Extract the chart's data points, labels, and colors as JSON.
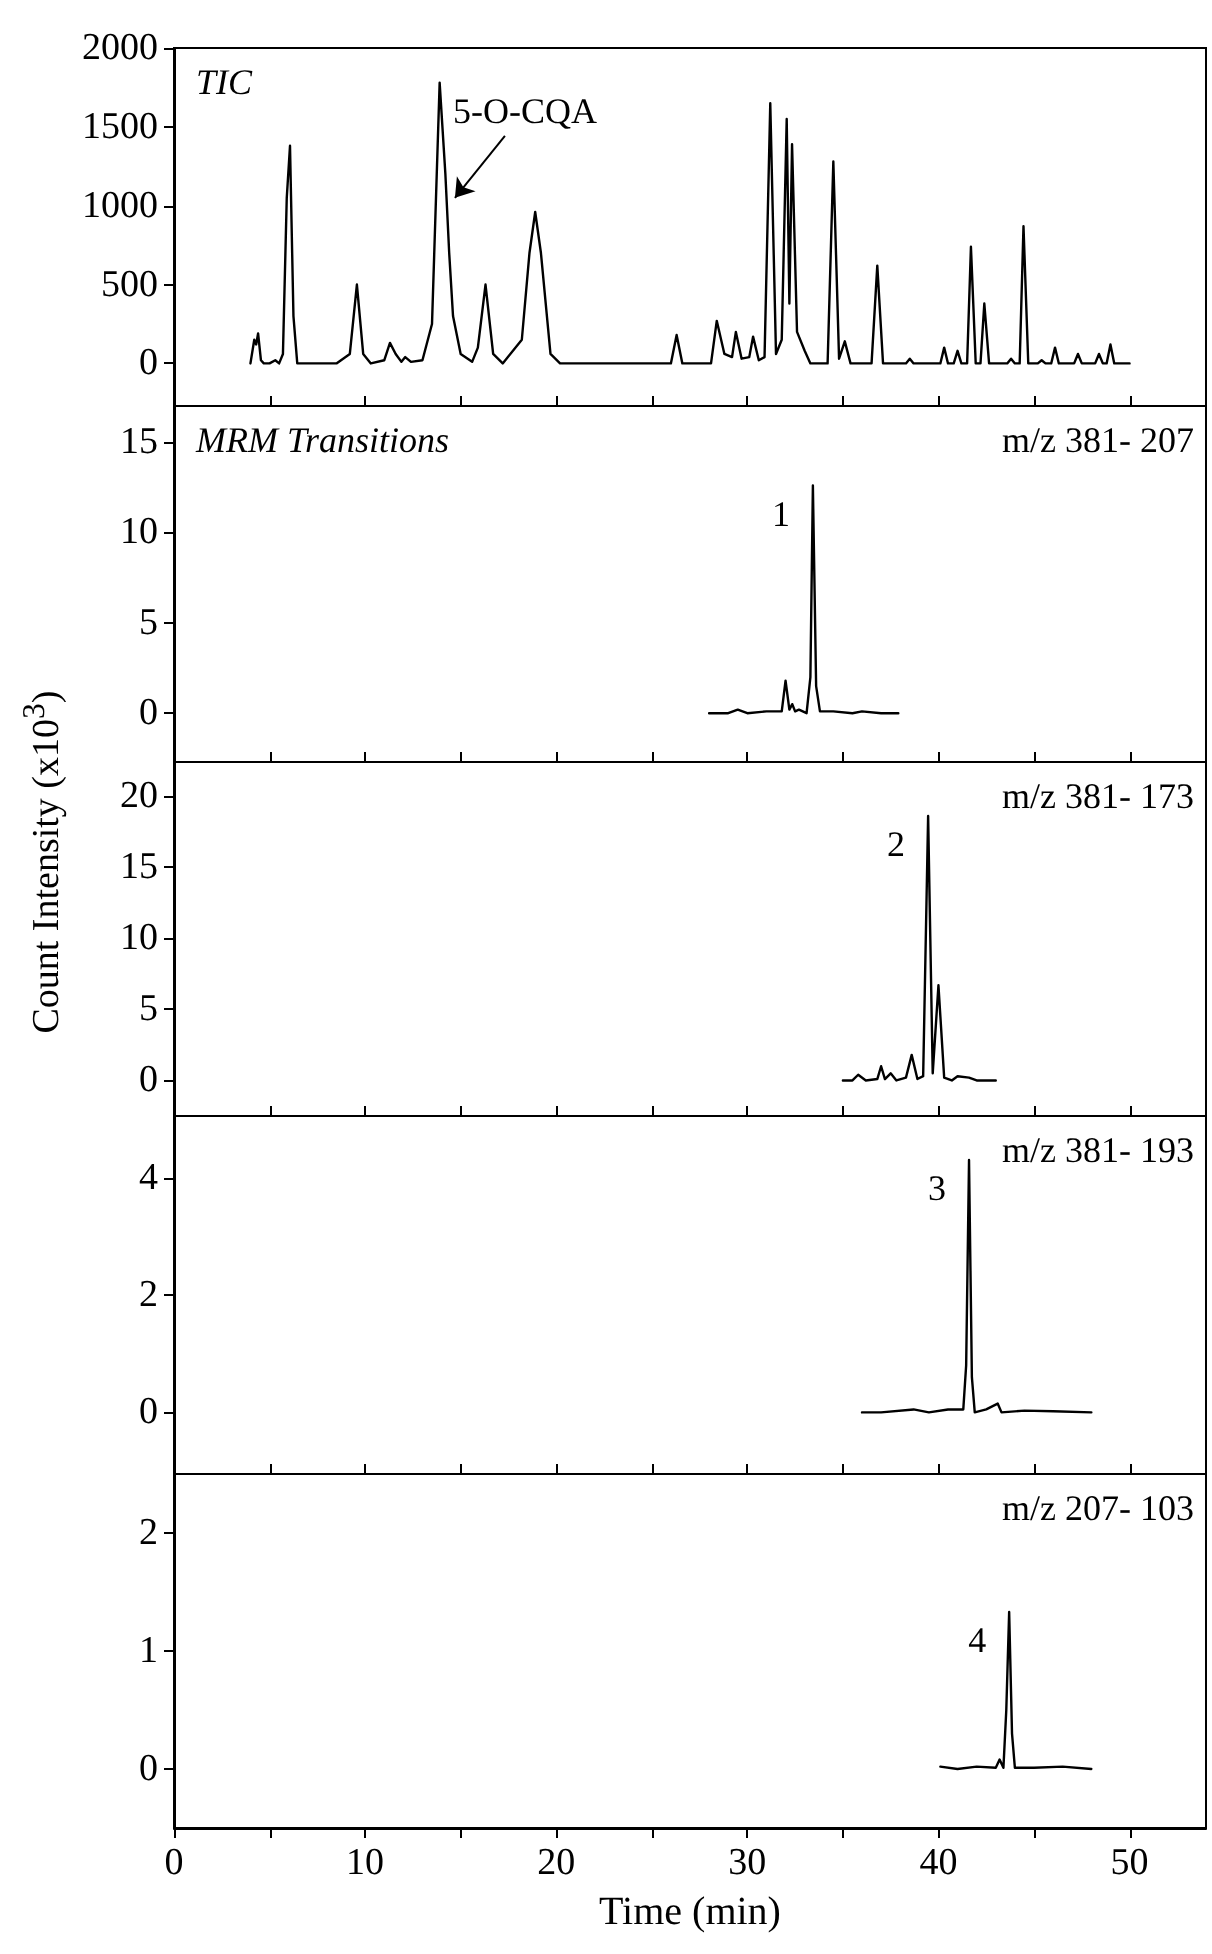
{
  "chart_data": [
    {
      "type": "line",
      "title": "TIC",
      "color": "#000000",
      "xlim": [
        0,
        54
      ],
      "ylim": [
        -270,
        2000
      ],
      "yticks": [
        0,
        500,
        1000,
        1500,
        2000
      ],
      "xticks": [
        0,
        {
          "value": 5,
          "label": null
        },
        10,
        {
          "value": 15,
          "label": null
        },
        20,
        {
          "value": 25,
          "label": null
        },
        30,
        {
          "value": 35,
          "label": null
        },
        40,
        {
          "value": 45,
          "label": null
        },
        50
      ],
      "tick_labels": "y",
      "annotations": [
        {
          "text": "5-O-CQA",
          "x": 14.7,
          "y": 1050
        }
      ],
      "x": [
        4.0,
        4.2,
        4.3,
        4.4,
        4.55,
        4.7,
        5.0,
        5.3,
        5.5,
        5.7,
        5.9,
        6.07,
        6.25,
        6.45,
        8.5,
        9.2,
        9.57,
        9.9,
        10.3,
        11.0,
        11.3,
        11.6,
        11.9,
        12.1,
        12.4,
        13.0,
        13.5,
        13.9,
        14.2,
        14.4,
        14.6,
        15.0,
        15.6,
        15.9,
        16.3,
        16.7,
        17.2,
        18.2,
        18.6,
        18.9,
        19.2,
        19.7,
        20.2,
        26.0,
        26.3,
        26.6,
        28.1,
        28.4,
        28.8,
        29.2,
        29.4,
        29.7,
        30.1,
        30.3,
        30.6,
        30.9,
        31.2,
        31.5,
        31.8,
        32.06,
        32.2,
        32.34,
        32.6,
        33.0,
        33.3,
        34.2,
        34.5,
        34.8,
        35.1,
        35.4,
        36.5,
        36.8,
        37.1,
        38.3,
        38.5,
        38.7,
        40.1,
        40.3,
        40.5,
        40.8,
        41.0,
        41.2,
        41.5,
        41.7,
        41.95,
        42.2,
        42.4,
        42.65,
        43.6,
        43.8,
        44.0,
        44.25,
        44.45,
        44.7,
        45.2,
        45.4,
        45.6,
        45.9,
        46.1,
        46.3,
        47.1,
        47.3,
        47.5,
        48.2,
        48.4,
        48.6,
        48.8,
        49.0,
        49.2,
        50.0
      ],
      "values": [
        0,
        150,
        120,
        190,
        20,
        0,
        0,
        20,
        0,
        60,
        1050,
        1380,
        300,
        0,
        0,
        60,
        500,
        60,
        0,
        20,
        130,
        60,
        10,
        40,
        10,
        20,
        250,
        1780,
        1200,
        700,
        300,
        60,
        10,
        100,
        500,
        60,
        0,
        150,
        700,
        960,
        700,
        60,
        0,
        0,
        180,
        0,
        0,
        270,
        60,
        40,
        200,
        30,
        40,
        170,
        20,
        40,
        1650,
        60,
        150,
        1550,
        380,
        1390,
        200,
        80,
        0,
        0,
        1280,
        30,
        140,
        0,
        0,
        620,
        0,
        0,
        30,
        0,
        0,
        100,
        0,
        0,
        80,
        0,
        0,
        740,
        0,
        0,
        380,
        0,
        0,
        30,
        0,
        0,
        870,
        0,
        0,
        20,
        0,
        0,
        100,
        0,
        0,
        60,
        0,
        0,
        60,
        0,
        0,
        120,
        0,
        0
      ]
    },
    {
      "type": "line",
      "title": "MRM Transitions",
      "subtitle": "m/z 381- 207",
      "color": "#000000",
      "xlim": [
        0,
        54
      ],
      "ylim": [
        -2.7,
        17
      ],
      "yticks": [
        0,
        5,
        10,
        15
      ],
      "xticks": [
        0,
        {
          "value": 5,
          "label": null
        },
        10,
        {
          "value": 15,
          "label": null
        },
        20,
        {
          "value": 25,
          "label": null
        },
        30,
        {
          "value": 35,
          "label": null
        },
        40,
        {
          "value": 45,
          "label": null
        },
        50
      ],
      "tick_labels": "y",
      "annotations": [
        {
          "text": "1",
          "x": 33.43,
          "y": 12.6
        }
      ],
      "x": [
        28.0,
        29.0,
        29.5,
        30.0,
        31.0,
        31.8,
        32.0,
        32.2,
        32.35,
        32.5,
        32.7,
        33.1,
        33.3,
        33.43,
        33.6,
        33.8,
        34.5,
        35.5,
        36.0,
        37.0,
        37.9
      ],
      "values": [
        0,
        0,
        0.2,
        0,
        0.1,
        0.1,
        1.8,
        0.2,
        0.5,
        0.1,
        0.2,
        0,
        2.0,
        12.6,
        1.5,
        0.1,
        0.1,
        0,
        0.1,
        0,
        0
      ]
    },
    {
      "type": "line",
      "subtitle": "m/z 381- 173",
      "ylabel": "Count Intensity (x10$^{3}$)",
      "color": "#000000",
      "xlim": [
        0,
        54
      ],
      "ylim": [
        -2.5,
        22.4
      ],
      "yticks": [
        0,
        5,
        10,
        15,
        20
      ],
      "xticks": [
        0,
        {
          "value": 5,
          "label": null
        },
        10,
        {
          "value": 15,
          "label": null
        },
        20,
        {
          "value": 25,
          "label": null
        },
        30,
        {
          "value": 35,
          "label": null
        },
        40,
        {
          "value": 45,
          "label": null
        },
        50
      ],
      "tick_labels": "y",
      "annotations": [
        {
          "text": "2",
          "x": 39.46,
          "y": 18.6
        }
      ],
      "x": [
        35.0,
        35.5,
        35.8,
        36.2,
        36.8,
        37.0,
        37.2,
        37.5,
        37.8,
        38.3,
        38.6,
        38.9,
        39.2,
        39.46,
        39.7,
        40.0,
        40.3,
        40.7,
        41.0,
        41.6,
        42.0,
        43.0
      ],
      "values": [
        0,
        0,
        0.4,
        0,
        0.1,
        1.0,
        0.1,
        0.5,
        0,
        0.2,
        1.8,
        0.1,
        0.3,
        18.6,
        0.5,
        6.7,
        0.2,
        0,
        0.3,
        0.2,
        0,
        0
      ]
    },
    {
      "type": "line",
      "subtitle": "m/z 381- 193",
      "color": "#000000",
      "xlim": [
        0,
        54
      ],
      "ylim": [
        -1.05,
        5.05
      ],
      "yticks": [
        0,
        2,
        4
      ],
      "xticks": [
        0,
        {
          "value": 5,
          "label": null
        },
        10,
        {
          "value": 15,
          "label": null
        },
        20,
        {
          "value": 25,
          "label": null
        },
        30,
        {
          "value": 35,
          "label": null
        },
        40,
        {
          "value": 45,
          "label": null
        },
        50
      ],
      "tick_labels": "y",
      "annotations": [
        {
          "text": "3",
          "x": 41.6,
          "y": 4.3
        }
      ],
      "x": [
        36.0,
        37.0,
        38.7,
        39.5,
        40.5,
        41.3,
        41.45,
        41.6,
        41.75,
        41.9,
        42.5,
        43.1,
        43.3,
        44.5,
        46.0,
        48.0
      ],
      "values": [
        0,
        0,
        0.05,
        0,
        0.05,
        0.05,
        0.8,
        4.3,
        0.6,
        0,
        0.05,
        0.15,
        0,
        0.03,
        0.02,
        0
      ]
    },
    {
      "type": "line",
      "subtitle": "m/z 207- 103",
      "xlabel": "Time (min)",
      "color": "#000000",
      "xlim": [
        0,
        54
      ],
      "ylim": [
        -0.5,
        2.5
      ],
      "yticks": [
        0,
        1,
        2
      ],
      "xticks": [
        0,
        {
          "value": 5,
          "label": null
        },
        10,
        {
          "value": 15,
          "label": null
        },
        20,
        {
          "value": 25,
          "label": null
        },
        30,
        {
          "value": 35,
          "label": null
        },
        40,
        {
          "value": 45,
          "label": null
        },
        50
      ],
      "annotations": [
        {
          "text": "4",
          "x": 43.7,
          "y": 1.33
        }
      ],
      "x": [
        40.1,
        41.0,
        42.0,
        43.0,
        43.2,
        43.4,
        43.55,
        43.7,
        43.85,
        44.0,
        45.0,
        46.5,
        48.0
      ],
      "values": [
        0.02,
        0,
        0.02,
        0.01,
        0.08,
        0.01,
        0.5,
        1.33,
        0.3,
        0.01,
        0.01,
        0.02,
        0
      ]
    }
  ]
}
